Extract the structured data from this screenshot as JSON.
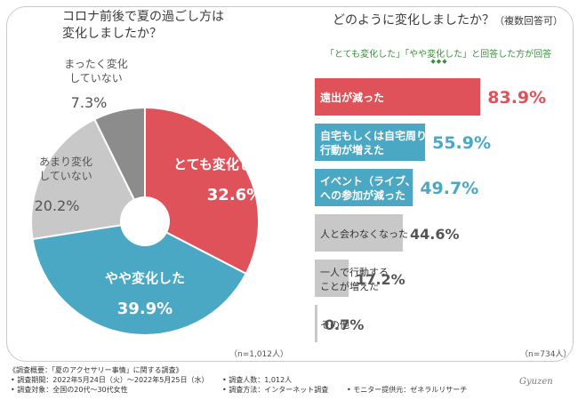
{
  "chart_data": [
    {
      "type": "pie",
      "title": "コロナ前後で夏の過ごし方は変化しましたか？",
      "title_lines": [
        "コロナ前後で夏の過ごし方は",
        "変化しましたか？"
      ],
      "categories": [
        "とても変化した",
        "やや変化した",
        "あまり変化していない",
        "まったく変化していない"
      ],
      "label_lines": [
        [
          "とても変化した"
        ],
        [
          "やや変化した"
        ],
        [
          "あまり変化",
          "していない"
        ],
        [
          "まったく変化",
          "していない"
        ]
      ],
      "values": [
        32.6,
        39.9,
        20.2,
        7.3
      ],
      "value_labels": [
        "32.6%",
        "39.9%",
        "20.2%",
        "7.3%"
      ],
      "colors": [
        "#e0525a",
        "#4aa8c4",
        "#c8c8c8",
        "#8c8c8c"
      ],
      "n_note": "（n=1,012人）"
    },
    {
      "type": "bar",
      "orientation": "horizontal",
      "title": "どのように変化しましたか？",
      "title_note": "（複数回答可）",
      "subtitle": "「とても変化した」「やや変化した」と回答した方が回答",
      "categories": [
        "遠出が減った",
        "自宅もしくは自宅周りでの行動が増えた",
        "イベント（ライブ、フェスなど）への参加が減った",
        "人と会わなくなった",
        "一人で行動することが増えた",
        "その他"
      ],
      "label_lines": [
        [
          "遠出が減った"
        ],
        [
          "自宅もしくは自宅周りでの",
          "行動が増えた"
        ],
        [
          "イベント（ライブ、フェスなど）",
          "への参加が減った"
        ],
        [
          "人と会わなくなった"
        ],
        [
          "一人で行動する",
          "ことが増えた"
        ],
        [
          "その他"
        ]
      ],
      "values": [
        83.9,
        55.9,
        49.7,
        44.6,
        17.2,
        0.7
      ],
      "value_labels": [
        "83.9%",
        "55.9%",
        "49.7%",
        "44.6%",
        "17.2%",
        "0.7%"
      ],
      "colors": [
        "#e0525a",
        "#4aa8c4",
        "#4aa8c4",
        "#c8c8c8",
        "#c8c8c8",
        "#c8c8c8"
      ],
      "xlim": [
        0,
        100
      ],
      "n_note": "（n=734人）"
    }
  ],
  "decor": {
    "dots": "◆◆◆"
  },
  "footer": {
    "overview": "《調査概要：「夏のアクセサリー事情」に関する調査》",
    "period": "• 調査期間：2022年5月24日（火）～2022年5月25日（水）",
    "count": "• 調査人数：1,012人",
    "target": "• 調査対象：全国の20代～30代女性",
    "method": "• 調査方法：インターネット調査",
    "provider": "• モニター提供元：ゼネラルリサーチ"
  },
  "logo": "Gyuzen"
}
